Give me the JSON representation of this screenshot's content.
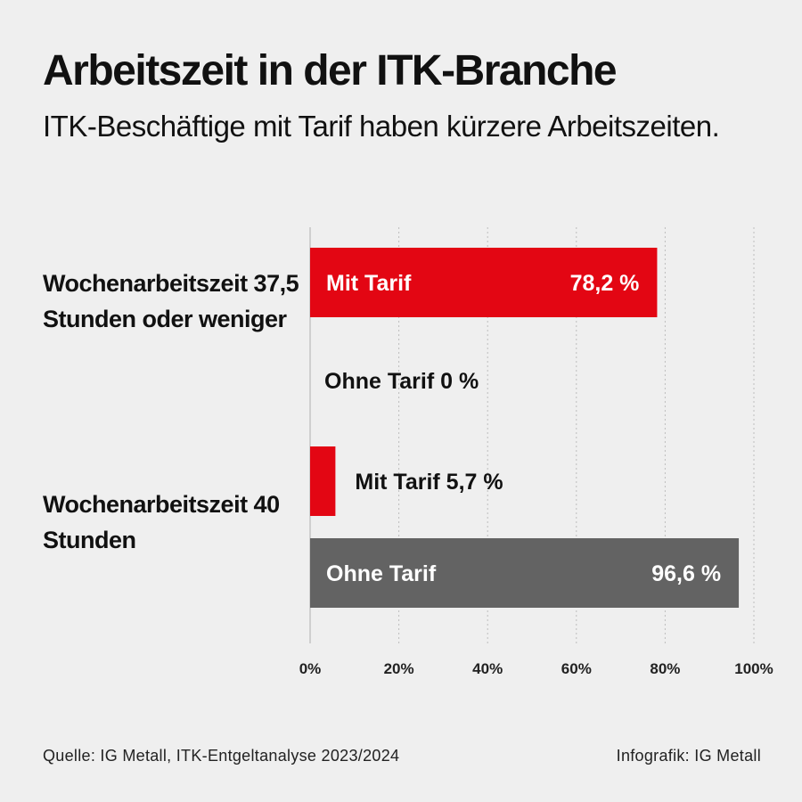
{
  "chart_data": {
    "type": "bar",
    "orientation": "horizontal",
    "title": "Arbeitszeit in der ITK-Branche",
    "subtitle": "ITK-Beschäftige mit Tarif haben kürzere Arbeitszeiten.",
    "xlim": [
      0,
      100
    ],
    "x_ticks": [
      "0%",
      "20%",
      "40%",
      "60%",
      "80%",
      "100%"
    ],
    "x_tick_values": [
      0,
      20,
      40,
      60,
      80,
      100
    ],
    "grid": true,
    "groups": [
      {
        "label": "Wochenarbeitszeit 37,5 Stunden oder weniger",
        "bars": [
          {
            "series": "Mit Tarif",
            "value": 78.2,
            "value_label": "78,2 %",
            "label_position": "inside"
          },
          {
            "series": "Ohne Tarif",
            "value": 0,
            "value_label": "0 %",
            "label_position": "outside"
          }
        ]
      },
      {
        "label": "Wochenarbeitszeit 40 Stunden",
        "bars": [
          {
            "series": "Mit Tarif",
            "value": 5.7,
            "value_label": "5,7 %",
            "label_position": "outside"
          },
          {
            "series": "Ohne Tarif",
            "value": 96.6,
            "value_label": "96,6 %",
            "label_position": "inside"
          }
        ]
      }
    ],
    "colors": {
      "Mit Tarif": "#e30613",
      "Ohne Tarif": "#636363"
    }
  },
  "footer": {
    "source": "Quelle: IG Metall, ITK-Entgeltanalyse 2023/2024",
    "credit": "Infografik: IG Metall"
  }
}
